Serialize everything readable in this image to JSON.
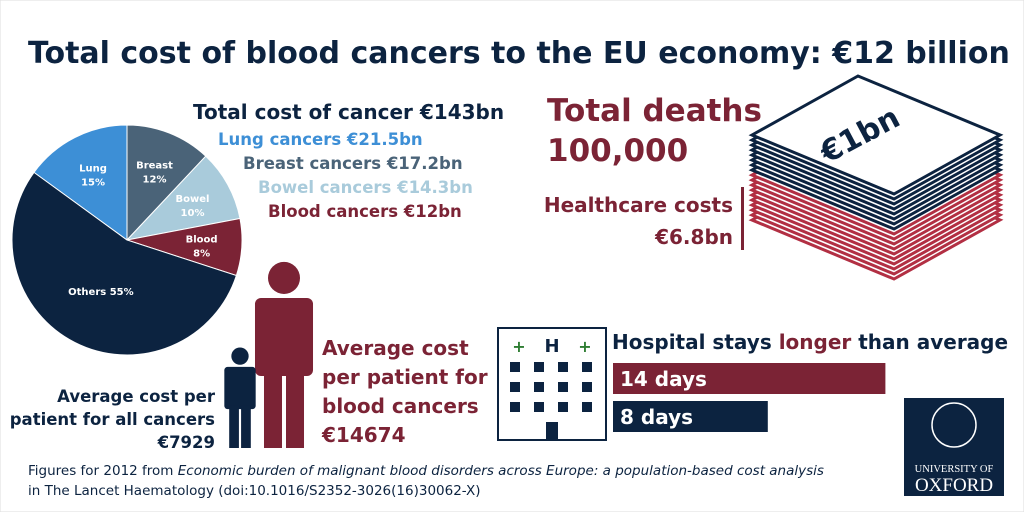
{
  "title": "Total cost of blood cancers to the EU economy: €12 billion",
  "cancer_costs": {
    "total": "Total cost of cancer €143bn",
    "lines": [
      "Lung cancers €21.5bn",
      "Breast cancers €17.2bn",
      "Bowel cancers €14.3bn",
      "Blood cancers €12bn"
    ]
  },
  "deaths": {
    "label": "Total deaths",
    "value": "100,000"
  },
  "healthcare": {
    "label": "Healthcare costs",
    "value": "€6.8bn",
    "stack_label": "€1bn"
  },
  "patients": {
    "all": {
      "label": [
        "Average cost per",
        "patient for all cancers"
      ],
      "value_label": "€7929",
      "value": 7929,
      "color": "#0c2340"
    },
    "blood": {
      "label": [
        "Average cost",
        "per patient for",
        "blood cancers"
      ],
      "value_label": "€14674",
      "value": 14674,
      "color": "#7b2335"
    }
  },
  "chart_data": [
    {
      "type": "pie",
      "categories": [
        "Lung",
        "Breast",
        "Bowel",
        "Blood",
        "Others"
      ],
      "values": [
        15,
        12,
        10,
        8,
        55
      ],
      "value_labels": [
        "15%",
        "12%",
        "10%",
        "8%",
        "55%"
      ],
      "colors": [
        "#3d8fd6",
        "#4a6378",
        "#a9cbdb",
        "#7b2335",
        "#0c2340"
      ]
    },
    {
      "type": "bar",
      "title_segments": [
        "Hospital stays ",
        "longer",
        " than average"
      ],
      "categories": [
        null,
        null
      ],
      "values": [
        14,
        8
      ],
      "value_labels": [
        "14 days",
        "8 days"
      ],
      "colors": [
        "#7b2335",
        "#0c2340"
      ]
    }
  ],
  "logo": {
    "line1": "UNIVERSITY OF",
    "line2": "OXFORD"
  },
  "footnote": {
    "line1": [
      "Figures for 2012 from ",
      "Economic burden of malignant blood disorders across Europe: a population-based cost analysis"
    ],
    "line2": "in The Lancet Haematology (doi:10.1016/S2352-3026(16)30062-X)"
  }
}
